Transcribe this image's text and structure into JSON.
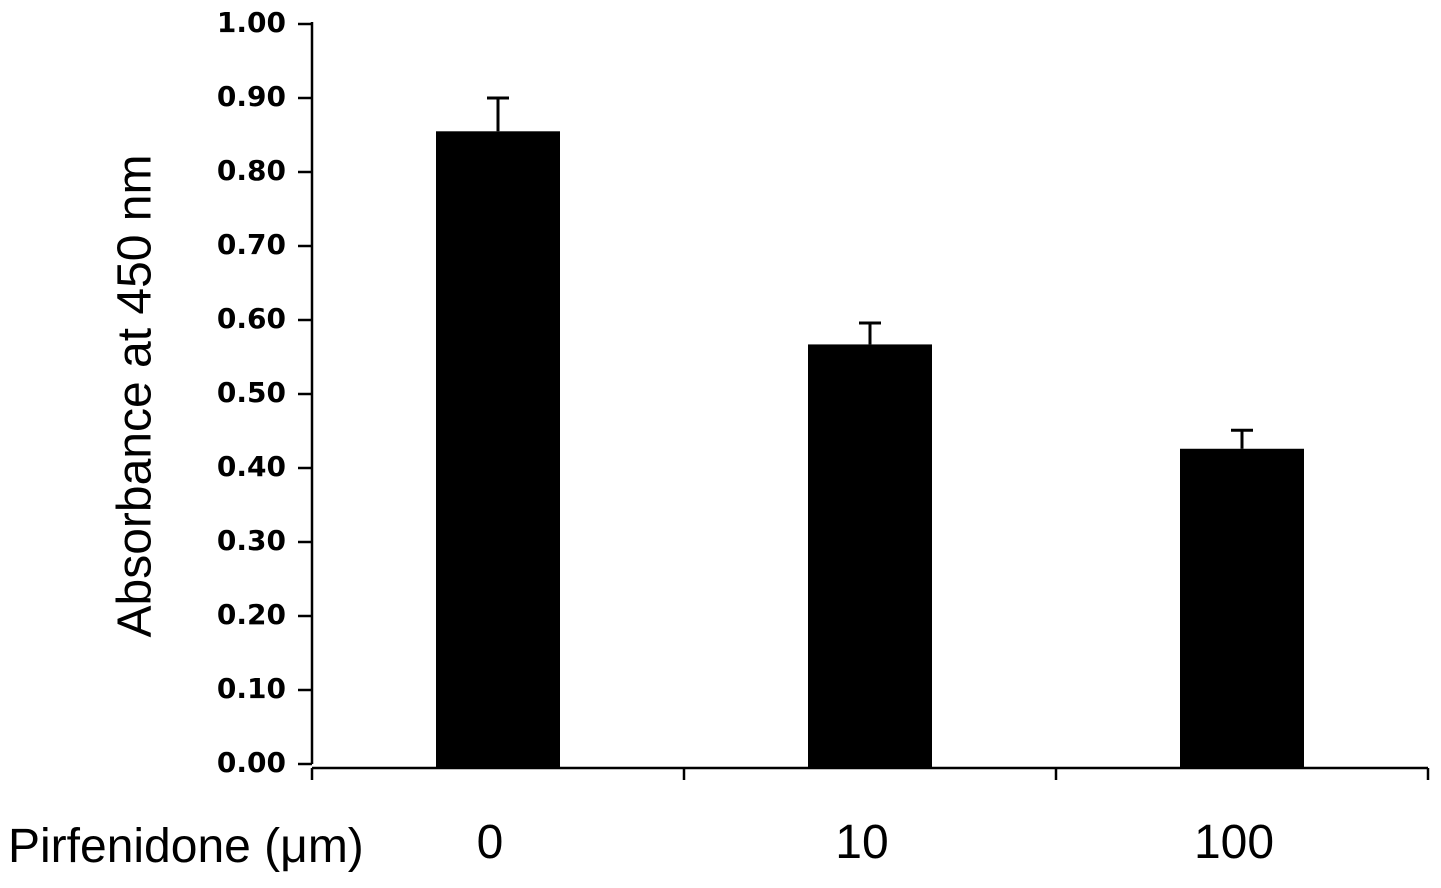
{
  "chart_data": {
    "type": "bar",
    "title": "",
    "ylabel": "Absorbance at 450 nm",
    "xlabel": "Pirfenidone (μm)",
    "categories": [
      "0",
      "10",
      "100"
    ],
    "values": [
      0.855,
      0.567,
      0.426
    ],
    "error_bars": [
      0.045,
      0.029,
      0.025
    ],
    "ylim": [
      0,
      1
    ],
    "yticks": [
      "0.00",
      "0.10",
      "0.20",
      "0.30",
      "0.40",
      "0.50",
      "0.60",
      "0.70",
      "0.80",
      "0.90",
      "1.00"
    ],
    "grid": false,
    "legend": "none",
    "bar_color": "#000000"
  }
}
